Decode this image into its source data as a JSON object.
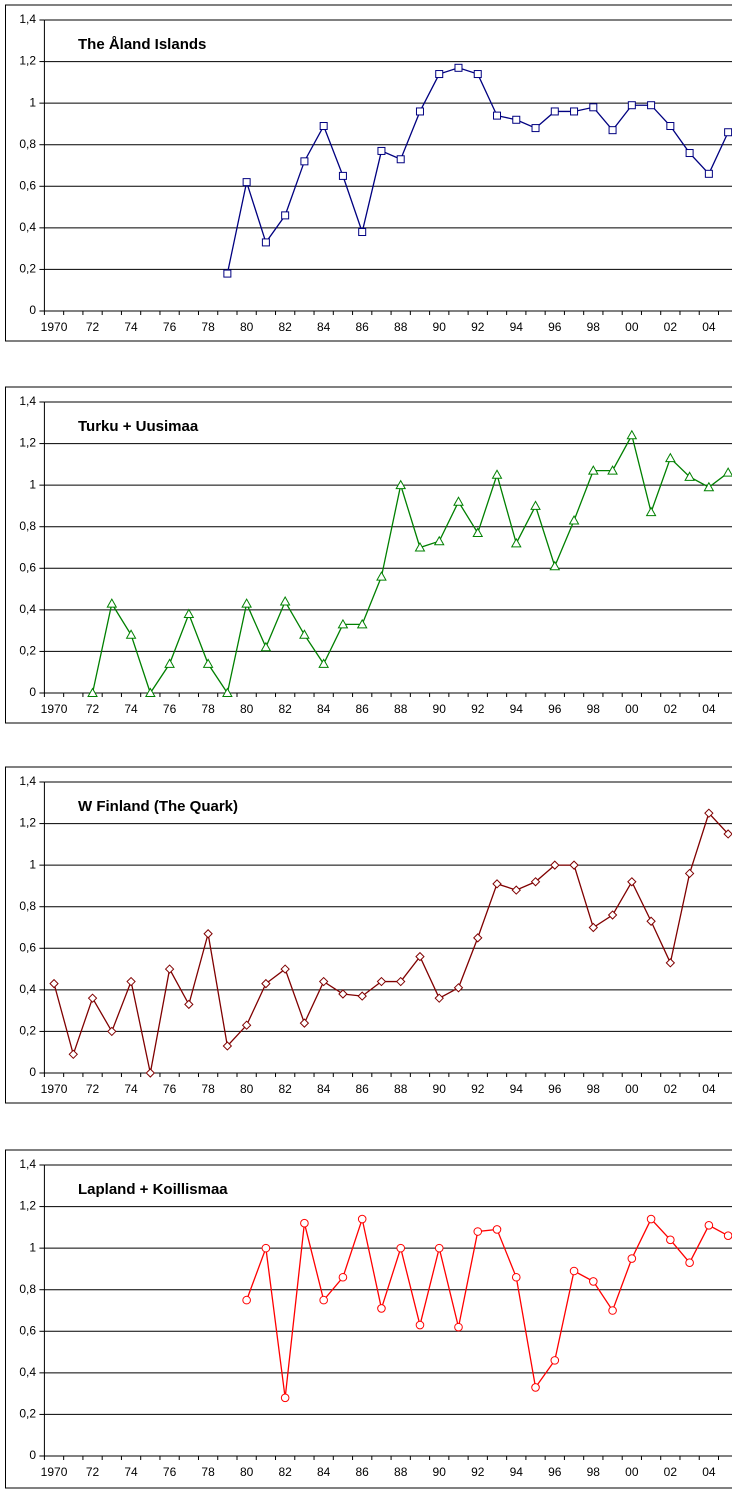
{
  "chart_data": [
    {
      "type": "line",
      "title": "The Åland Islands",
      "color": "#000080",
      "marker": "square",
      "categories": [
        "1970",
        null,
        "72",
        null,
        "74",
        null,
        "76",
        null,
        "78",
        null,
        "80",
        null,
        "82",
        null,
        "84",
        null,
        "86",
        null,
        "88",
        null,
        "90",
        null,
        "92",
        null,
        "94",
        null,
        "96",
        null,
        "98",
        null,
        "00",
        null,
        "02",
        null,
        "04",
        null
      ],
      "values": [
        null,
        null,
        null,
        null,
        null,
        null,
        null,
        null,
        null,
        0.18,
        0.62,
        0.33,
        0.46,
        0.72,
        0.89,
        0.65,
        0.38,
        0.77,
        0.73,
        0.96,
        1.14,
        1.17,
        1.14,
        0.94,
        0.92,
        0.88,
        0.96,
        0.96,
        0.98,
        0.87,
        0.99,
        0.99,
        0.89,
        0.76,
        0.66,
        0.86
      ],
      "ylim": [
        0,
        1.4
      ],
      "yticks": [
        0,
        {
          "value": 0.2,
          "label": "0,2"
        },
        {
          "value": 0.4,
          "label": "0,4"
        },
        {
          "value": 0.6,
          "label": "0,6"
        },
        {
          "value": 0.8,
          "label": "0,8"
        },
        1,
        {
          "value": 1.2,
          "label": "1,2"
        },
        {
          "value": 1.4,
          "label": "1,4"
        }
      ],
      "grid": true
    },
    {
      "type": "line",
      "title": "Turku + Uusimaa",
      "color": "#008000",
      "marker": "triangle",
      "categories": [
        "1970",
        null,
        "72",
        null,
        "74",
        null,
        "76",
        null,
        "78",
        null,
        "80",
        null,
        "82",
        null,
        "84",
        null,
        "86",
        null,
        "88",
        null,
        "90",
        null,
        "92",
        null,
        "94",
        null,
        "96",
        null,
        "98",
        null,
        "00",
        null,
        "02",
        null,
        "04",
        null
      ],
      "values": [
        null,
        null,
        0,
        0.43,
        0.28,
        0,
        0.14,
        0.38,
        0.14,
        0,
        0.43,
        0.22,
        0.44,
        0.28,
        0.14,
        0.33,
        0.33,
        0.56,
        1.0,
        0.7,
        0.73,
        0.92,
        0.77,
        1.05,
        0.72,
        0.9,
        0.61,
        0.83,
        1.07,
        1.07,
        1.24,
        0.87,
        1.13,
        1.04,
        0.99,
        1.06
      ],
      "ylim": [
        0,
        1.4
      ],
      "yticks": [
        0,
        {
          "value": 0.2,
          "label": "0,2"
        },
        {
          "value": 0.4,
          "label": "0,4"
        },
        {
          "value": 0.6,
          "label": "0,6"
        },
        {
          "value": 0.8,
          "label": "0,8"
        },
        1,
        {
          "value": 1.2,
          "label": "1,2"
        },
        {
          "value": 1.4,
          "label": "1,4"
        }
      ],
      "grid": true
    },
    {
      "type": "line",
      "title": "W Finland (The Quark)",
      "color": "#800000",
      "marker": "diamond",
      "categories": [
        "1970",
        null,
        "72",
        null,
        "74",
        null,
        "76",
        null,
        "78",
        null,
        "80",
        null,
        "82",
        null,
        "84",
        null,
        "86",
        null,
        "88",
        null,
        "90",
        null,
        "92",
        null,
        "94",
        null,
        "96",
        null,
        "98",
        null,
        "00",
        null,
        "02",
        null,
        "04",
        null
      ],
      "values": [
        0.43,
        0.09,
        0.36,
        0.2,
        0.44,
        0,
        0.5,
        0.33,
        0.67,
        0.13,
        0.23,
        0.43,
        0.5,
        0.24,
        0.44,
        0.38,
        0.37,
        0.44,
        0.44,
        0.56,
        0.36,
        0.41,
        0.65,
        0.91,
        0.88,
        0.92,
        1.0,
        1.0,
        0.7,
        0.76,
        0.92,
        0.73,
        0.53,
        0.96,
        1.25,
        1.15
      ],
      "ylim": [
        0,
        1.4
      ],
      "yticks": [
        0,
        {
          "value": 0.2,
          "label": "0,2"
        },
        {
          "value": 0.4,
          "label": "0,4"
        },
        {
          "value": 0.6,
          "label": "0,6"
        },
        {
          "value": 0.8,
          "label": "0,8"
        },
        1,
        {
          "value": 1.2,
          "label": "1,2"
        },
        {
          "value": 1.4,
          "label": "1,4"
        }
      ],
      "grid": true
    },
    {
      "type": "line",
      "title": "Lapland + Koillismaa",
      "color": "#ff0000",
      "marker": "circle",
      "categories": [
        "1970",
        null,
        "72",
        null,
        "74",
        null,
        "76",
        null,
        "78",
        null,
        "80",
        null,
        "82",
        null,
        "84",
        null,
        "86",
        null,
        "88",
        null,
        "90",
        null,
        "92",
        null,
        "94",
        null,
        "96",
        null,
        "98",
        null,
        "00",
        null,
        "02",
        null,
        "04",
        null
      ],
      "values": [
        null,
        null,
        null,
        null,
        null,
        null,
        null,
        null,
        null,
        null,
        0.75,
        1.0,
        0.28,
        1.12,
        0.75,
        0.86,
        1.14,
        0.71,
        1.0,
        0.63,
        1.0,
        0.62,
        1.08,
        1.09,
        0.86,
        0.33,
        0.46,
        0.89,
        0.84,
        0.7,
        0.95,
        1.14,
        1.04,
        0.93,
        1.11,
        1.06
      ],
      "ylim": [
        0,
        1.4
      ],
      "yticks": [
        0,
        {
          "value": 0.2,
          "label": "0,2"
        },
        {
          "value": 0.4,
          "label": "0,4"
        },
        {
          "value": 0.6,
          "label": "0,6"
        },
        {
          "value": 0.8,
          "label": "0,8"
        },
        1,
        {
          "value": 1.2,
          "label": "1,2"
        },
        {
          "value": 1.4,
          "label": "1,4"
        }
      ],
      "grid": true
    }
  ]
}
